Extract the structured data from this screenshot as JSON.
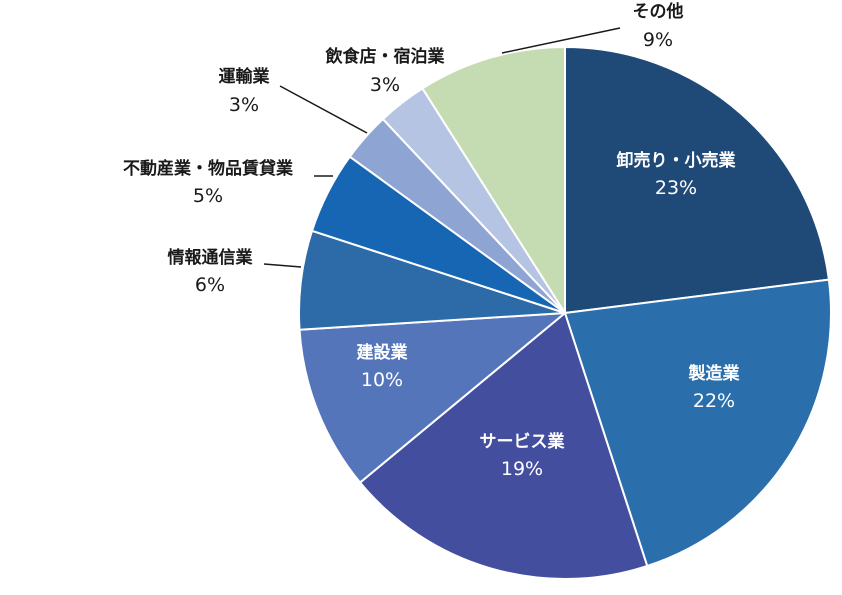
{
  "chart_data": {
    "type": "pie",
    "title": "",
    "slices": [
      {
        "label": "卸売り・小売業",
        "value": 23,
        "pct_label": "23%",
        "color": "#1f4a78"
      },
      {
        "label": "製造業",
        "value": 22,
        "pct_label": "22%",
        "color": "#2a6fac"
      },
      {
        "label": "サービス業",
        "value": 19,
        "pct_label": "19%",
        "color": "#434e9e"
      },
      {
        "label": "建設業",
        "value": 10,
        "pct_label": "10%",
        "color": "#5575bb"
      },
      {
        "label": "情報通信業",
        "value": 6,
        "pct_label": "6%",
        "color": "#2d6aa8"
      },
      {
        "label": "不動産業・物品賃貸業",
        "value": 5,
        "pct_label": "5%",
        "color": "#1766b3"
      },
      {
        "label": "運輸業",
        "value": 3,
        "pct_label": "3%",
        "color": "#8ea5d4"
      },
      {
        "label": "飲食店・宿泊業",
        "value": 3,
        "pct_label": "3%",
        "color": "#b5c4e3"
      },
      {
        "label": "その他",
        "value": 9,
        "pct_label": "9%",
        "color": "#c5dbb1"
      }
    ],
    "legend": "none"
  }
}
